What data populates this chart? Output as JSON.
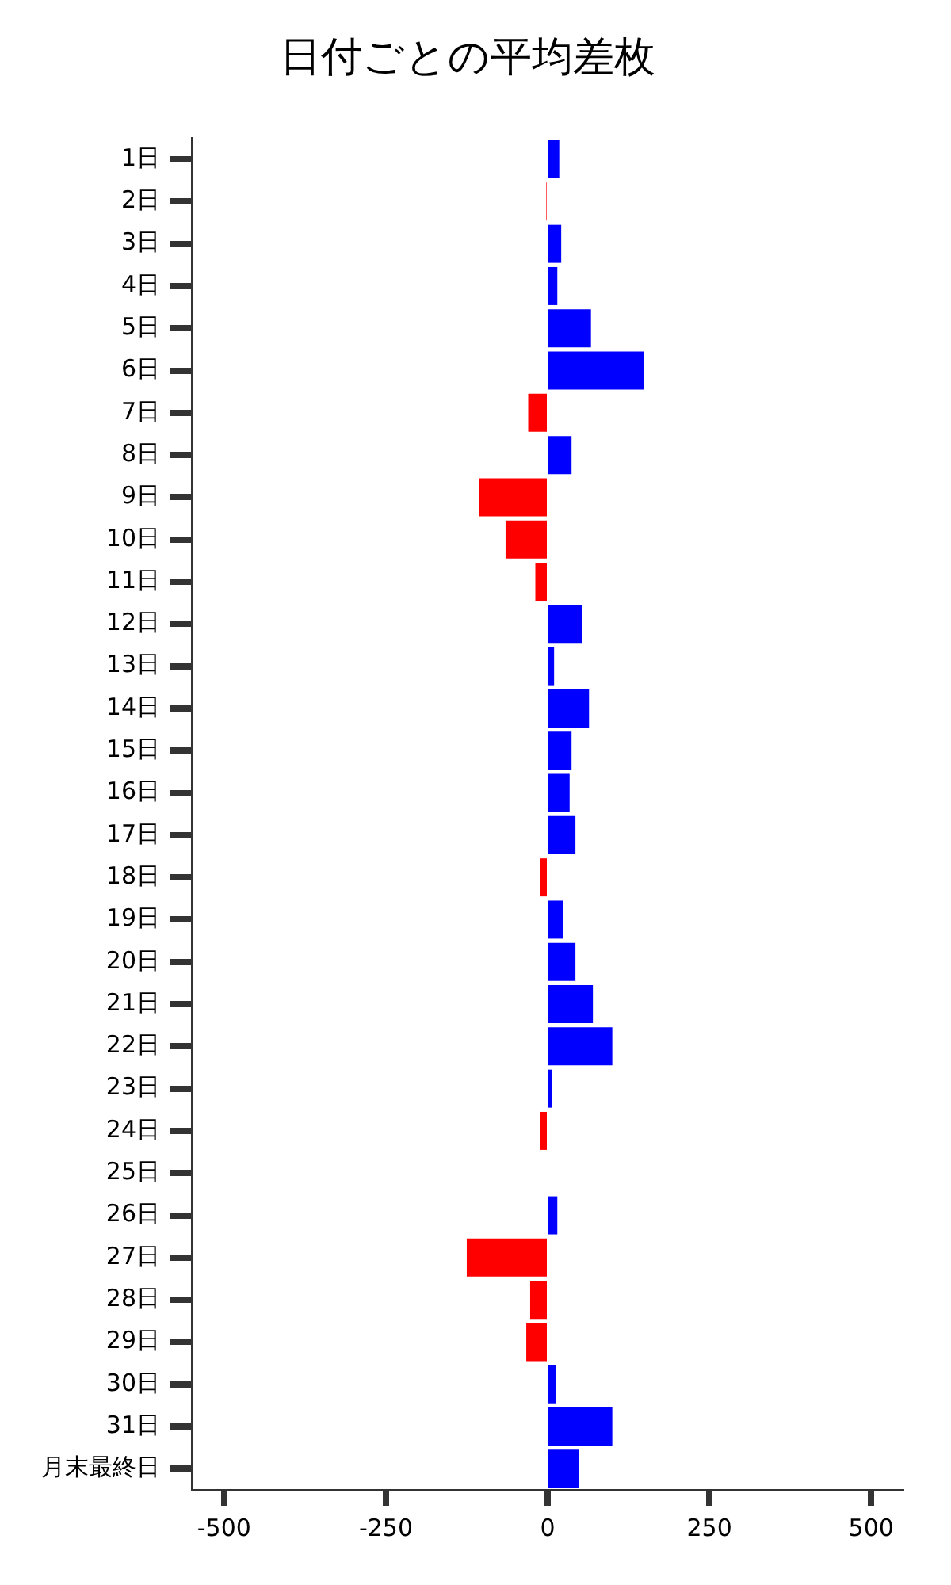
{
  "chart_data": {
    "type": "bar",
    "orientation": "horizontal",
    "title": "日付ごとの平均差枚",
    "categories": [
      "1日",
      "2日",
      "3日",
      "4日",
      "5日",
      "6日",
      "7日",
      "8日",
      "9日",
      "10日",
      "11日",
      "12日",
      "13日",
      "14日",
      "15日",
      "16日",
      "17日",
      "18日",
      "19日",
      "20日",
      "21日",
      "22日",
      "23日",
      "24日",
      "25日",
      "26日",
      "27日",
      "28日",
      "29日",
      "30日",
      "31日",
      "月末最終日"
    ],
    "values": [
      18,
      -2,
      21,
      15,
      67,
      149,
      -30,
      37,
      -106,
      -65,
      -19,
      53,
      10,
      64,
      37,
      34,
      43,
      -11,
      24,
      43,
      70,
      100,
      7,
      -11,
      0,
      15,
      -125,
      -27,
      -33,
      13,
      100,
      48
    ],
    "colors": [
      "#0000ff",
      "#ff0000",
      "#0000ff",
      "#0000ff",
      "#0000ff",
      "#0000ff",
      "#ff0000",
      "#0000ff",
      "#ff0000",
      "#ff0000",
      "#ff0000",
      "#0000ff",
      "#0000ff",
      "#0000ff",
      "#0000ff",
      "#0000ff",
      "#0000ff",
      "#ff0000",
      "#0000ff",
      "#0000ff",
      "#0000ff",
      "#0000ff",
      "#0000ff",
      "#ff0000",
      "#0000ff",
      "#0000ff",
      "#ff0000",
      "#ff0000",
      "#ff0000",
      "#0000ff",
      "#0000ff",
      "#0000ff"
    ],
    "xlim": [
      -550,
      550
    ],
    "xticks": [
      -500,
      -250,
      0,
      250,
      500
    ],
    "legend": false
  }
}
